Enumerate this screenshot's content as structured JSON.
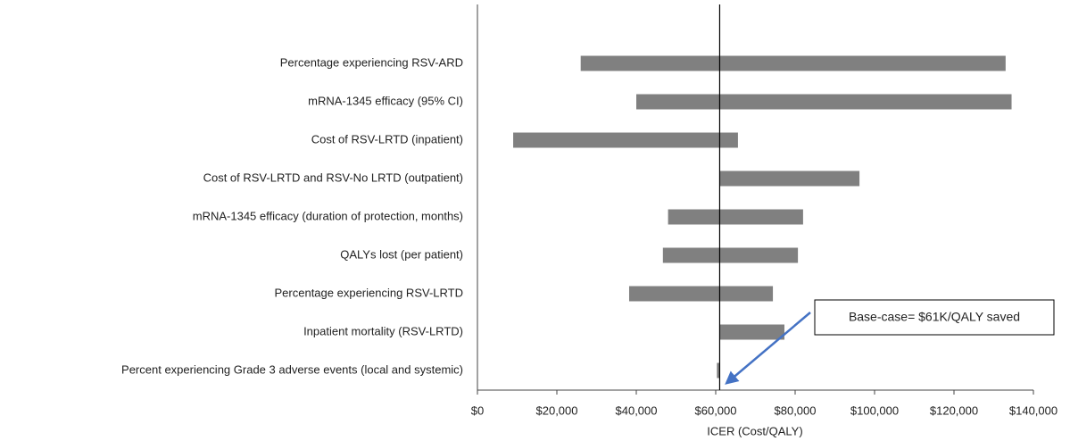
{
  "chart_data": {
    "type": "tornado",
    "categories": [
      "Percentage experiencing RSV-ARD",
      "mRNA-1345 efficacy (95% CI)",
      "Cost of RSV-LRTD (inpatient)",
      "Cost of RSV-LRTD and RSV-No LRTD (outpatient)",
      "mRNA-1345 efficacy (duration of protection, months)",
      "QALYs lost (per patient)",
      "Percentage experiencing RSV-LRTD",
      "Inpatient mortality (RSV-LRTD)",
      "Percent experiencing Grade 3 adverse events (local and systemic)"
    ],
    "low": [
      26000,
      40000,
      9000,
      61000,
      48000,
      46700,
      38200,
      61000,
      60300
    ],
    "high": [
      133000,
      134500,
      65600,
      96200,
      82000,
      80700,
      74400,
      77300,
      61000
    ],
    "color": "#808080",
    "base_value": 61000,
    "annotation": "Base-case= $61K/QALY saved",
    "xlabel": "ICER (Cost/QALY)",
    "xlim": [
      0,
      140000
    ],
    "xticks": [
      {
        "value": 0,
        "label": "$0"
      },
      {
        "value": 20000,
        "label": "$20,000"
      },
      {
        "value": 40000,
        "label": "$40,000"
      },
      {
        "value": 60000,
        "label": "$60,000"
      },
      {
        "value": 80000,
        "label": "$80,000"
      },
      {
        "value": 100000,
        "label": "$100,000"
      },
      {
        "value": 120000,
        "label": "$120,000"
      },
      {
        "value": 140000,
        "label": "$140,000"
      }
    ]
  }
}
